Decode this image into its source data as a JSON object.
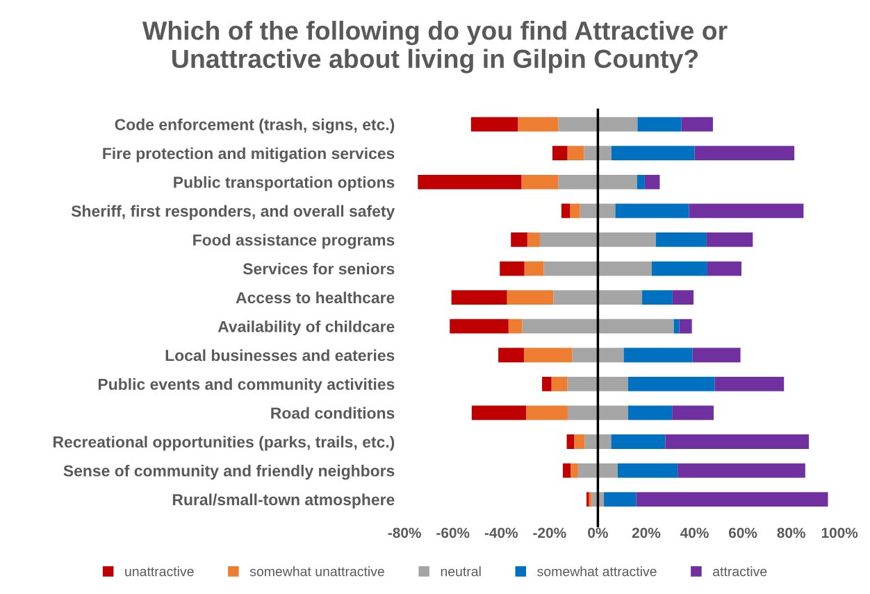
{
  "chart_data": {
    "type": "bar",
    "orientation": "horizontal",
    "stacked": true,
    "title": "Which of the following do you find Attractive or\nUnattractive about living in Gilpin County?",
    "categories": [
      "Code enforcement (trash, signs, etc.)",
      "Fire protection and mitigation services",
      "Public transportation options",
      "Sheriff, first responders, and overall safety",
      "Food assistance programs",
      "Services for seniors",
      "Access to healthcare",
      "Availability of childcare",
      "Local businesses and eateries",
      "Public events and community activities",
      "Road conditions",
      "Recreational opportunities (parks, trails, etc.)",
      "Sense of community and friendly neighbors",
      "Rural/small-town atmosphere"
    ],
    "series": [
      {
        "name": "neutral",
        "color": "#a5a5a5",
        "values": [
          -16.4,
          -5.7,
          -16.4,
          -7.4,
          -24.0,
          -22.4,
          -18.4,
          -31.4,
          -10.7,
          -12.6,
          -12.5,
          -5.4,
          -8.2,
          -2.6
        ]
      },
      {
        "name": "somewhat unattractive",
        "color": "#ed7d31",
        "values": [
          -16.7,
          -6.9,
          -15.2,
          -4.1,
          -5.2,
          -8.0,
          -19.2,
          -5.6,
          -19.9,
          -6.6,
          -17.2,
          -4.4,
          -3.1,
          -1.1
        ]
      },
      {
        "name": "unattractive",
        "color": "#c00000",
        "values": [
          -19.4,
          -6.2,
          -42.9,
          -3.6,
          -6.8,
          -10.2,
          -23.0,
          -24.3,
          -10.6,
          -3.9,
          -22.5,
          -3.1,
          -3.2,
          -1.0
        ]
      },
      {
        "color": "#a5a5a5",
        "values": [
          16.4,
          5.6,
          16.2,
          7.2,
          24.0,
          22.3,
          18.3,
          31.4,
          10.7,
          12.5,
          12.5,
          5.5,
          8.2,
          2.5
        ]
      },
      {
        "name": "somewhat attractive",
        "color": "#0070c0",
        "values": [
          18.2,
          34.4,
          3.2,
          30.5,
          21.0,
          23.0,
          12.6,
          2.3,
          28.5,
          35.9,
          18.2,
          22.4,
          24.8,
          13.4
        ]
      },
      {
        "name": "attractive",
        "color": "#7030a0",
        "values": [
          13.0,
          41.3,
          6.2,
          47.4,
          19.1,
          14.1,
          8.7,
          5.2,
          19.8,
          28.6,
          17.2,
          59.4,
          52.8,
          79.3
        ]
      }
    ],
    "xlim": [
      -80,
      100
    ],
    "xticks": [
      {
        "value": -80,
        "label": "-80%"
      },
      {
        "value": -60,
        "label": "-60%"
      },
      {
        "value": -40,
        "label": "-40%"
      },
      {
        "value": -20,
        "label": "-20%"
      },
      {
        "value": 0,
        "label": "0%"
      },
      {
        "value": 20,
        "label": "20%"
      },
      {
        "value": 40,
        "label": "40%"
      },
      {
        "value": 60,
        "label": "60%"
      },
      {
        "value": 80,
        "label": "80%"
      },
      {
        "value": 100,
        "label": "100%"
      }
    ],
    "ref_lines": [
      {
        "axis": "x",
        "value": 0,
        "color": "#000000"
      }
    ],
    "grid": false,
    "legend": "bottom"
  }
}
